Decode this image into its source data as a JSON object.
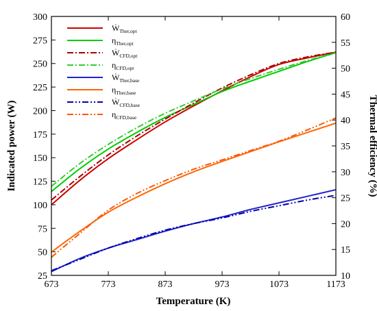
{
  "chart_data": {
    "type": "line",
    "xlabel": "Temperature (K)",
    "ylabel": "Indicated power (W)",
    "y2label": "Thermal efficiency (%)",
    "xlim": [
      673,
      1173
    ],
    "ylim": [
      25,
      300
    ],
    "y2lim": [
      10,
      60
    ],
    "xticks": [
      673,
      773,
      873,
      973,
      1073,
      1173
    ],
    "yticks": [
      25,
      50,
      75,
      100,
      125,
      150,
      175,
      200,
      225,
      250,
      275,
      300
    ],
    "y2ticks": [
      10,
      15,
      20,
      25,
      30,
      35,
      40,
      45,
      50,
      55,
      60
    ],
    "grid": false,
    "legend_position": "top-left",
    "series": [
      {
        "name_main": "Ẇ",
        "name_sub": "Ther,opt",
        "axis": "left",
        "color": "#cc0000",
        "dash": "solid",
        "x": [
          673,
          723,
          773,
          823,
          873,
          923,
          973,
          1023,
          1073,
          1123,
          1173
        ],
        "y": [
          100,
          126,
          149,
          169,
          188,
          205,
          221,
          236,
          249,
          256,
          262
        ]
      },
      {
        "name_main": "η",
        "name_sub": "Ther,opt",
        "axis": "right",
        "color": "#00cc00",
        "dash": "solid",
        "x": [
          673,
          723,
          773,
          823,
          873,
          923,
          973,
          1023,
          1073,
          1123,
          1173
        ],
        "y": [
          26.2,
          30.6,
          34.4,
          37.6,
          40.5,
          43.0,
          45.5,
          47.5,
          49.4,
          51.3,
          53.0
        ]
      },
      {
        "name_main": "Ẇ",
        "name_sub": "CFD,opt",
        "axis": "left",
        "color": "#aa0000",
        "dash": "dashdot",
        "x": [
          673,
          723,
          773,
          823,
          873,
          923,
          973,
          1023,
          1073,
          1123,
          1173
        ],
        "y": [
          105,
          130,
          153,
          173,
          191,
          208,
          224,
          238,
          250,
          257,
          262
        ]
      },
      {
        "name_main": "η",
        "name_sub": "CFD,opt",
        "axis": "right",
        "color": "#33cc33",
        "dash": "dashdot",
        "x": [
          673,
          723,
          773,
          823,
          873,
          923,
          973,
          1023,
          1073,
          1123,
          1173
        ],
        "y": [
          27.2,
          31.6,
          35.3,
          38.5,
          41.3,
          43.7,
          46.0,
          48.0,
          49.8,
          51.5,
          53.0
        ]
      },
      {
        "name_main": "Ẇ",
        "name_sub": "Ther,base",
        "axis": "left",
        "color": "#2222cc",
        "dash": "solid",
        "x": [
          673,
          723,
          773,
          823,
          873,
          923,
          973,
          1023,
          1073,
          1123,
          1173
        ],
        "y": [
          29,
          43,
          54,
          63,
          72,
          80,
          87,
          95,
          102,
          109,
          116
        ]
      },
      {
        "name_main": "η",
        "name_sub": "Ther,base",
        "axis": "right",
        "color": "#ff6600",
        "dash": "solid",
        "x": [
          673,
          723,
          773,
          823,
          873,
          923,
          973,
          1023,
          1073,
          1123,
          1173
        ],
        "y": [
          14.5,
          18.5,
          22.2,
          25.1,
          27.7,
          30.0,
          32.0,
          33.9,
          35.8,
          37.6,
          39.4
        ]
      },
      {
        "name_main": "Ẇ",
        "name_sub": "CFD,base",
        "axis": "left",
        "color": "#0000aa",
        "dash": "dashdotdot",
        "x": [
          673,
          723,
          773,
          823,
          873,
          923,
          973,
          1023,
          1073,
          1123,
          1173
        ],
        "y": [
          30,
          42,
          54,
          64,
          73,
          80,
          86,
          93,
          99,
          105,
          110
        ]
      },
      {
        "name_main": "η",
        "name_sub": "CFD,base",
        "axis": "right",
        "color": "#ff5500",
        "dash": "dashdotdot",
        "x": [
          673,
          723,
          773,
          823,
          873,
          923,
          973,
          1023,
          1073,
          1123,
          1173
        ],
        "y": [
          13.5,
          18.1,
          22.6,
          25.8,
          28.3,
          30.5,
          32.3,
          34.1,
          35.9,
          38.1,
          40.4
        ]
      }
    ]
  }
}
